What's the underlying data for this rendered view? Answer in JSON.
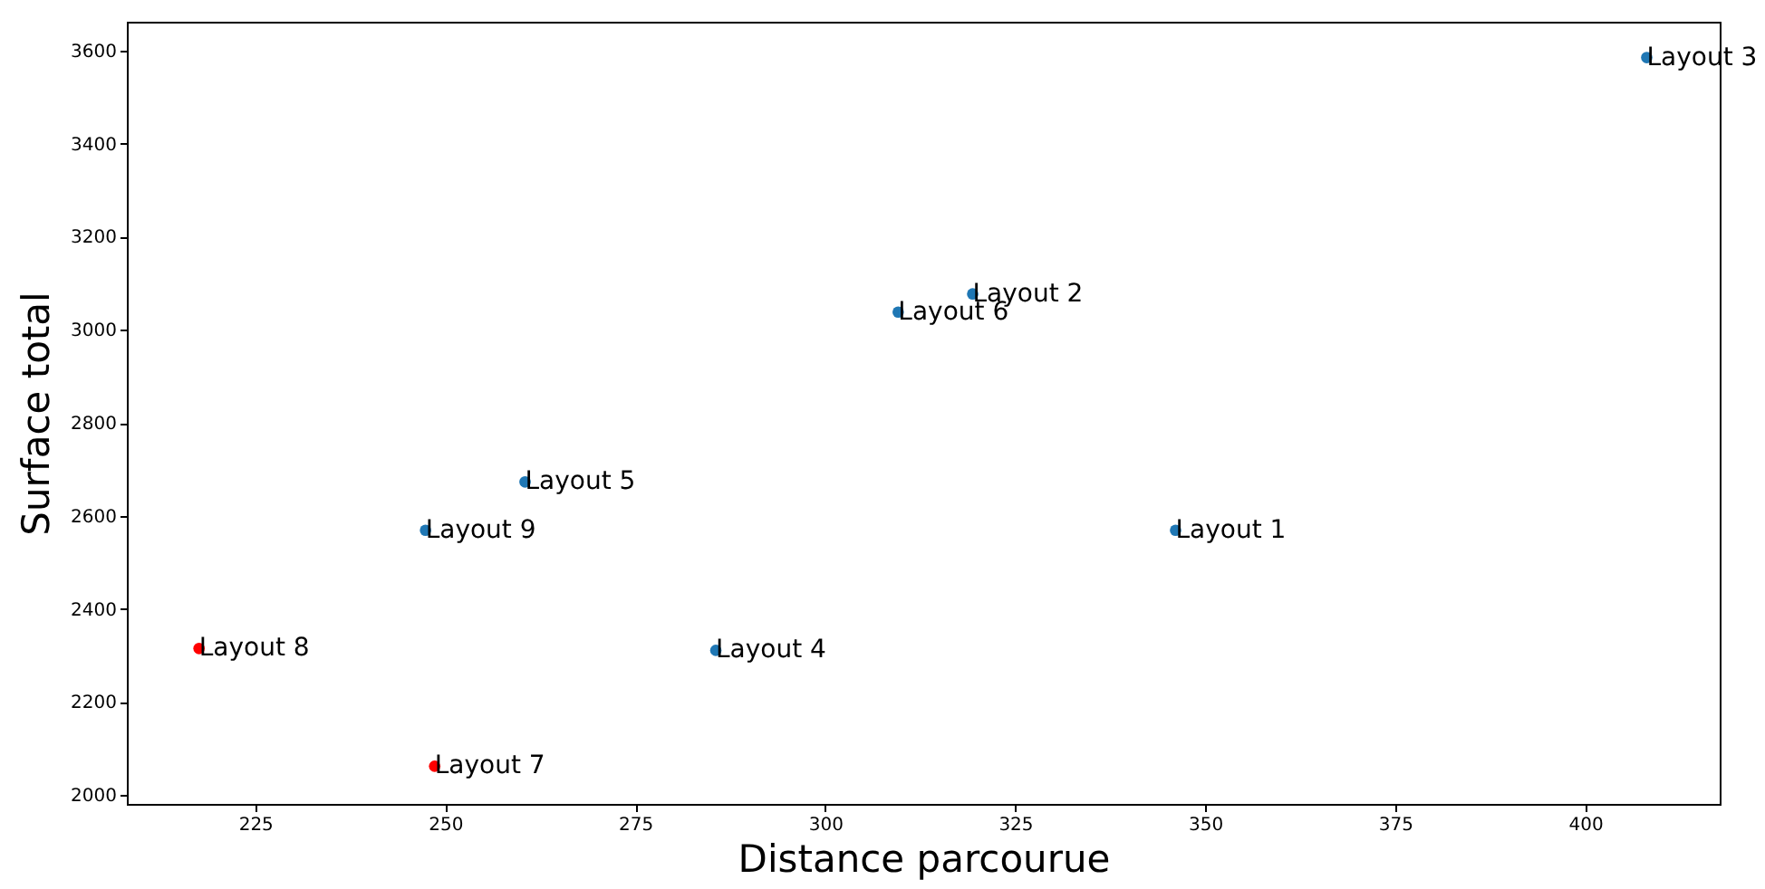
{
  "chart_data": {
    "type": "scatter",
    "xlabel": "Distance parcourue",
    "ylabel": "Surface total",
    "x": [
      346.1,
      319.4,
      408.1,
      285.6,
      260.5,
      309.6,
      248.6,
      217.6,
      247.4
    ],
    "values": [
      2569,
      3077,
      3585,
      2311,
      2673,
      3038,
      2062,
      2315,
      2569
    ],
    "colors": [
      "#1f77b4",
      "#1f77b4",
      "#1f77b4",
      "#1f77b4",
      "#1f77b4",
      "#1f77b4",
      "#ff0000",
      "#ff0000",
      "#1f77b4"
    ],
    "marker": "circle",
    "xlim": [
      208.1,
      417.7
    ],
    "ylim": [
      1981,
      3662
    ],
    "xticks": [
      225,
      250,
      275,
      300,
      325,
      350,
      375,
      400
    ],
    "yticks": [
      2000,
      2200,
      2400,
      2600,
      2800,
      3000,
      3200,
      3400,
      3600
    ],
    "grid": false,
    "annotations": [
      {
        "text": "Layout 1",
        "x": 346.1,
        "y": 2569
      },
      {
        "text": "Layout 2",
        "x": 319.4,
        "y": 3077
      },
      {
        "text": "Layout 3",
        "x": 408.1,
        "y": 3585
      },
      {
        "text": "Layout 4",
        "x": 285.6,
        "y": 2311
      },
      {
        "text": "Layout 5",
        "x": 260.5,
        "y": 2673
      },
      {
        "text": "Layout 6",
        "x": 309.6,
        "y": 3038
      },
      {
        "text": "Layout 7",
        "x": 248.6,
        "y": 2062
      },
      {
        "text": "Layout 8",
        "x": 217.6,
        "y": 2315
      },
      {
        "text": "Layout 9",
        "x": 247.4,
        "y": 2569
      }
    ]
  }
}
